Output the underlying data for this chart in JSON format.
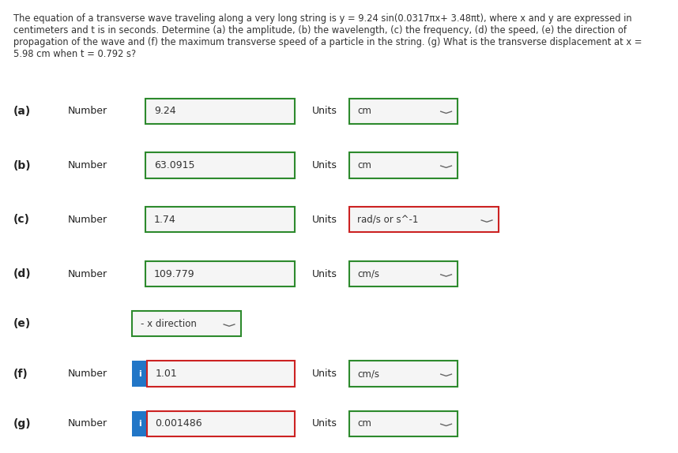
{
  "title_text": "The equation of a transverse wave traveling along a very long string is y = 9.24 sin(0.0317πx+ 3.48πt), where x and y are expressed in\ncentimeters and t is in seconds. Determine (a) the amplitude, (b) the wavelength, (c) the frequency, (d) the speed, (e) the direction of\npropagation of the wave and (f) the maximum transverse speed of a particle in the string. (g) What is the transverse displacement at x =\n5.98 cm when t = 0.792 s?",
  "rows": [
    {
      "label": "(a)",
      "has_info": false,
      "number_val": "9.24",
      "has_units": true,
      "units_val": "cm",
      "units_border": "green",
      "number_border": "green",
      "dropdown": false
    },
    {
      "label": "(b)",
      "has_info": false,
      "number_val": "63.0915",
      "has_units": true,
      "units_val": "cm",
      "units_border": "green",
      "number_border": "green",
      "dropdown": false
    },
    {
      "label": "(c)",
      "has_info": false,
      "number_val": "1.74",
      "has_units": true,
      "units_val": "rad/s or s^-1",
      "units_border": "red",
      "number_border": "green",
      "dropdown": false
    },
    {
      "label": "(d)",
      "has_info": false,
      "number_val": "109.779",
      "has_units": true,
      "units_val": "cm/s",
      "units_border": "green",
      "number_border": "green",
      "dropdown": false
    },
    {
      "label": "(e)",
      "has_info": false,
      "number_val": null,
      "has_units": false,
      "units_val": null,
      "units_border": null,
      "number_border": "green",
      "dropdown": true,
      "dropdown_val": "- x direction"
    },
    {
      "label": "(f)",
      "has_info": true,
      "number_val": "1.01",
      "has_units": true,
      "units_val": "cm/s",
      "units_border": "green",
      "number_border": "red",
      "dropdown": false
    },
    {
      "label": "(g)",
      "has_info": true,
      "number_val": "0.001486",
      "has_units": true,
      "units_val": "cm",
      "units_border": "green",
      "number_border": "red",
      "dropdown": false
    }
  ],
  "bg_color": "#ffffff",
  "text_color": "#333333",
  "label_color": "#222222",
  "info_bg": "#2176c7",
  "info_text": "i",
  "number_bg": "#f5f5f5",
  "units_bg": "#f5f5f5"
}
